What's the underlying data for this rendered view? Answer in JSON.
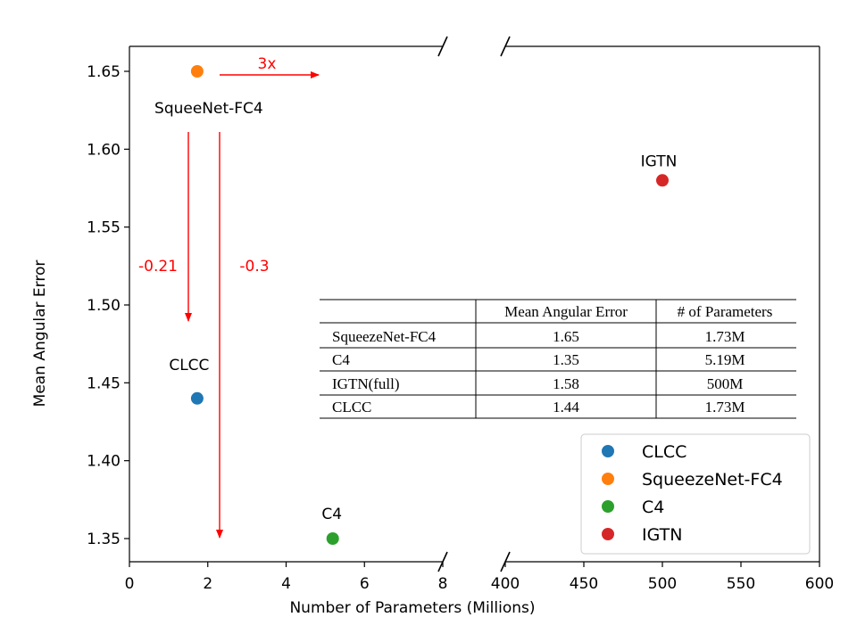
{
  "chart_data": {
    "type": "scatter",
    "xlabel": "Number of Parameters (Millions)",
    "ylabel": "Mean Angular Error",
    "broken_x_axis": true,
    "x_left_range": [
      0,
      8
    ],
    "x_right_range": [
      400,
      600
    ],
    "ylim": [
      1.335,
      1.665
    ],
    "x_ticks_left": [
      "0",
      "2",
      "4",
      "6",
      "8"
    ],
    "x_ticks_right": [
      "400",
      "450",
      "500",
      "550",
      "600"
    ],
    "y_ticks": [
      "1.35",
      "1.40",
      "1.45",
      "1.50",
      "1.55",
      "1.60",
      "1.65"
    ],
    "series": [
      {
        "name": "CLCC",
        "x": 1.73,
        "y": 1.44,
        "color": "#1f77b4"
      },
      {
        "name": "SqueezeNet-FC4",
        "x": 1.73,
        "y": 1.65,
        "color": "#ff7f0e"
      },
      {
        "name": "C4",
        "x": 5.19,
        "y": 1.35,
        "color": "#2ca02c"
      },
      {
        "name": "IGTN",
        "x": 500,
        "y": 1.58,
        "color": "#d62728"
      }
    ],
    "point_labels": [
      {
        "text": "SqueeNet-FC4",
        "for": "SqueezeNet-FC4"
      },
      {
        "text": "CLCC",
        "for": "CLCC"
      },
      {
        "text": "C4",
        "for": "C4"
      },
      {
        "text": "IGTN",
        "for": "IGTN"
      }
    ],
    "annotations": [
      {
        "text": "3x",
        "color": "#ff0000",
        "meaning": "parameter increase, arrow pointing right"
      },
      {
        "text": "-0.21",
        "color": "#ff0000",
        "meaning": "error drop to CLCC"
      },
      {
        "text": "-0.3",
        "color": "#ff0000",
        "meaning": "error drop to C4"
      }
    ],
    "legend_position": "bottom-right",
    "table": {
      "headers": [
        "",
        "Mean Angular Error",
        "# of Parameters"
      ],
      "rows": [
        [
          "SqueezeNet-FC4",
          "1.65",
          "1.73M"
        ],
        [
          "C4",
          "1.35",
          "5.19M"
        ],
        [
          "IGTN(full)",
          "1.58",
          "500M"
        ],
        [
          "CLCC",
          "1.44",
          "1.73M"
        ]
      ]
    }
  }
}
